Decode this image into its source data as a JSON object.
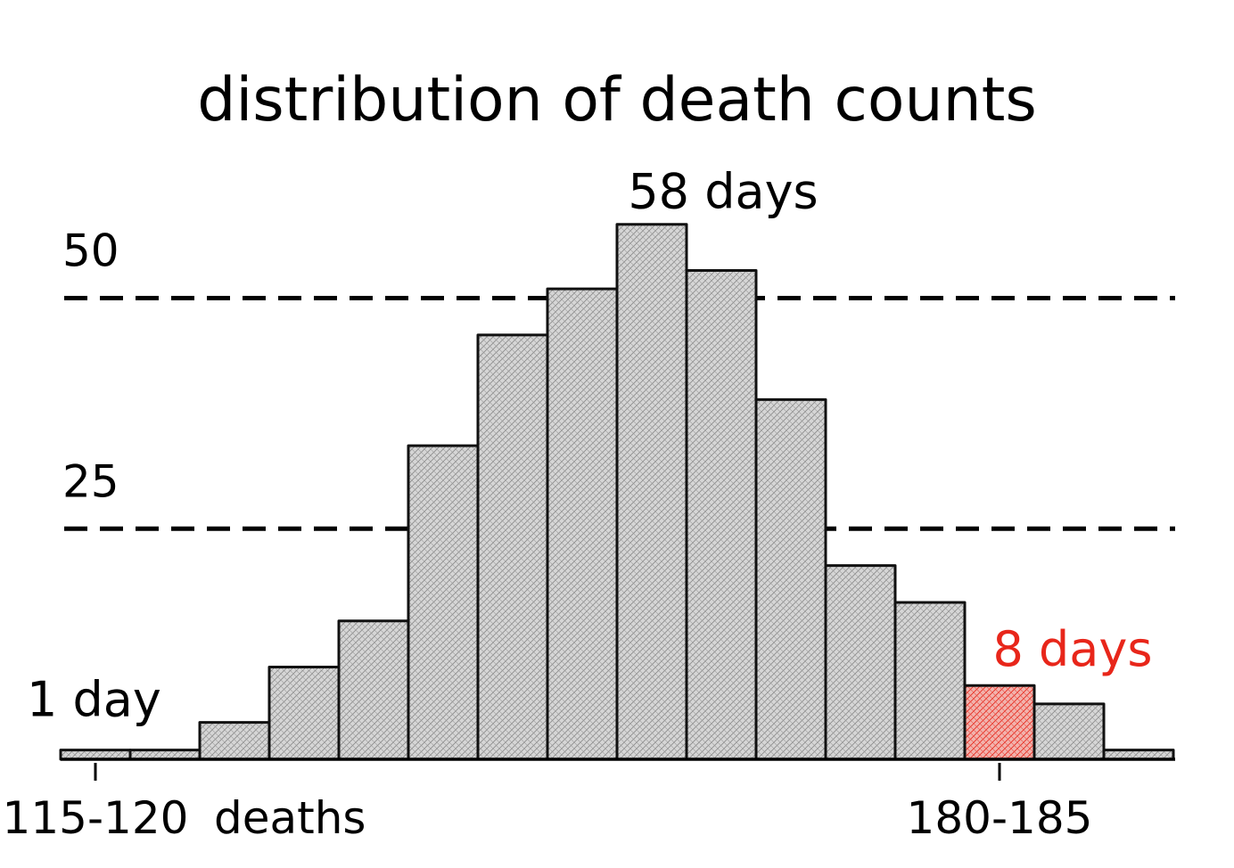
{
  "chart_data": {
    "type": "bar",
    "title": "distribution of death counts",
    "xlabel": "",
    "ylabel": "",
    "x_unit": "deaths",
    "bins": [
      {
        "range": "115-120",
        "value": 1
      },
      {
        "range": "120-125",
        "value": 1
      },
      {
        "range": "125-130",
        "value": 4
      },
      {
        "range": "130-135",
        "value": 10
      },
      {
        "range": "135-140",
        "value": 15
      },
      {
        "range": "140-145",
        "value": 34
      },
      {
        "range": "145-150",
        "value": 46
      },
      {
        "range": "150-155",
        "value": 51
      },
      {
        "range": "155-160",
        "value": 58
      },
      {
        "range": "160-165",
        "value": 53
      },
      {
        "range": "165-170",
        "value": 39
      },
      {
        "range": "170-175",
        "value": 21
      },
      {
        "range": "175-180",
        "value": 17
      },
      {
        "range": "180-185",
        "value": 8
      },
      {
        "range": "185-190",
        "value": 6
      },
      {
        "range": "190-195",
        "value": 1
      }
    ],
    "ylim": [
      0,
      60
    ],
    "y_gridlines": [
      25,
      50
    ],
    "grid": "dashed horizontal",
    "tick_labels": {
      "x": [
        {
          "label": "115-120",
          "bin": 0,
          "suffix": "deaths"
        },
        {
          "label": "180-185",
          "bin": 13
        }
      ],
      "y": [
        "25",
        "50"
      ]
    },
    "annotations": [
      {
        "text": "58 days",
        "bin": 8
      },
      {
        "text": "8 days",
        "bin": 13,
        "highlight": true
      },
      {
        "text": "1 day",
        "bin": 0
      }
    ],
    "highlight_bin": 13,
    "colors": {
      "bar_fill": "#d6d6d6",
      "bar_hatch": "#8a8a8a",
      "highlight_fill": "#f2b3ad",
      "highlight_hatch": "#e8261a",
      "highlight_text": "#e8261a",
      "outline": "#111111"
    }
  }
}
